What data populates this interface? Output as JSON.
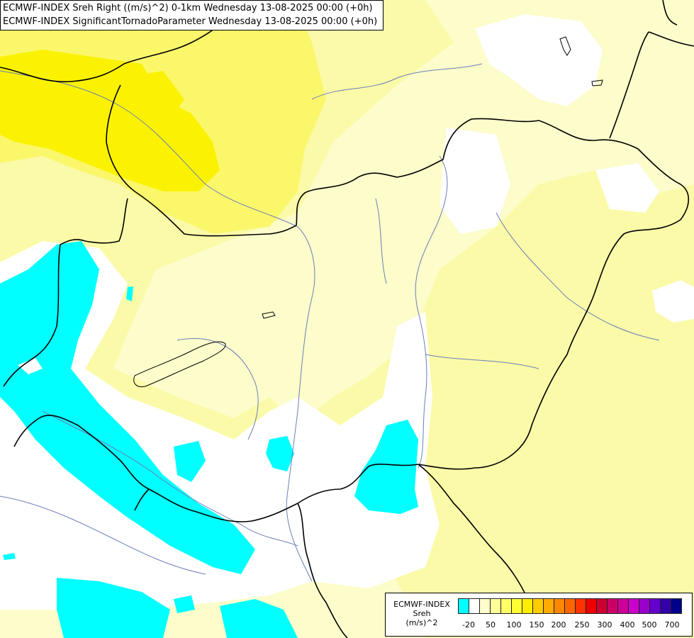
{
  "title_lines": [
    "ECMWF-INDEX Sreh Right ((m/s)^2) 0-1km Wednesday 13-08-2025 00:00 (+0h)",
    "ECMWF-INDEX SignificantTornadoParameter Wednesday 13-08-2025 00:00 (+0h)"
  ],
  "legend": {
    "source": "ECMWF-INDEX",
    "variable": "Sreh",
    "unit": "(m/s)^2",
    "colors": [
      "#00ffff",
      "#ffffff",
      "#ffffcc",
      "#ffff99",
      "#ffff66",
      "#ffff33",
      "#ffee00",
      "#ffcc00",
      "#ffaa00",
      "#ff8800",
      "#ff6600",
      "#ff3300",
      "#ee0000",
      "#cc0033",
      "#cc0066",
      "#cc0099",
      "#cc00cc",
      "#9900cc",
      "#6600cc",
      "#3300aa",
      "#000088"
    ],
    "tick_labels": [
      "-20",
      "50",
      "100",
      "150",
      "200",
      "250",
      "300",
      "400",
      "500",
      "700"
    ]
  },
  "map_colors": {
    "background": "#fdfccb",
    "pale_yellow": "#fdfccb",
    "light_yellow": "#fbfaa8",
    "yellow": "#fbf76b",
    "bright_yellow": "#faf200",
    "white": "#ffffff",
    "cyan": "#00ffff",
    "border": "#000000",
    "river": "#6a7fb8"
  }
}
